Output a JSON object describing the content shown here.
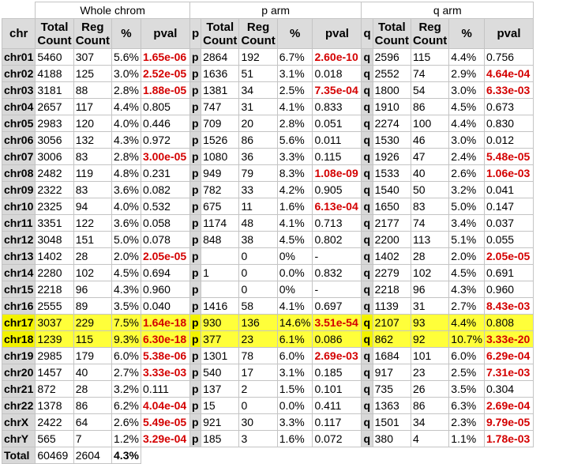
{
  "groups": {
    "whole": "Whole chrom",
    "p": "p arm",
    "q": "q arm"
  },
  "headers": {
    "chr": "chr",
    "total_top": "Total",
    "total_bottom": "Count",
    "reg_top": "Reg",
    "reg_bottom": "Count",
    "pct": "%",
    "pval": "pval",
    "p": "p",
    "q": "q"
  },
  "rows": [
    {
      "chr": "chr01",
      "w": [
        "5460",
        "307",
        "5.6%",
        "1.65e-06"
      ],
      "ws": true,
      "pa": "p",
      "p": [
        "2864",
        "192",
        "6.7%",
        "2.60e-10"
      ],
      "ps": true,
      "qa": "q",
      "q": [
        "2596",
        "115",
        "4.4%",
        "0.756"
      ],
      "qs": false
    },
    {
      "chr": "chr02",
      "w": [
        "4188",
        "125",
        "3.0%",
        "2.52e-05"
      ],
      "ws": true,
      "pa": "p",
      "p": [
        "1636",
        "51",
        "3.1%",
        "0.018"
      ],
      "ps": false,
      "qa": "q",
      "q": [
        "2552",
        "74",
        "2.9%",
        "4.64e-04"
      ],
      "qs": true
    },
    {
      "chr": "chr03",
      "w": [
        "3181",
        "88",
        "2.8%",
        "1.88e-05"
      ],
      "ws": true,
      "pa": "p",
      "p": [
        "1381",
        "34",
        "2.5%",
        "7.35e-04"
      ],
      "ps": true,
      "qa": "q",
      "q": [
        "1800",
        "54",
        "3.0%",
        "6.33e-03"
      ],
      "qs": true
    },
    {
      "chr": "chr04",
      "w": [
        "2657",
        "117",
        "4.4%",
        "0.805"
      ],
      "ws": false,
      "pa": "p",
      "p": [
        "747",
        "31",
        "4.1%",
        "0.833"
      ],
      "ps": false,
      "qa": "q",
      "q": [
        "1910",
        "86",
        "4.5%",
        "0.673"
      ],
      "qs": false
    },
    {
      "chr": "chr05",
      "w": [
        "2983",
        "120",
        "4.0%",
        "0.446"
      ],
      "ws": false,
      "pa": "p",
      "p": [
        "709",
        "20",
        "2.8%",
        "0.051"
      ],
      "ps": false,
      "qa": "q",
      "q": [
        "2274",
        "100",
        "4.4%",
        "0.830"
      ],
      "qs": false
    },
    {
      "chr": "chr06",
      "w": [
        "3056",
        "132",
        "4.3%",
        "0.972"
      ],
      "ws": false,
      "pa": "p",
      "p": [
        "1526",
        "86",
        "5.6%",
        "0.011"
      ],
      "ps": false,
      "qa": "q",
      "q": [
        "1530",
        "46",
        "3.0%",
        "0.012"
      ],
      "qs": false
    },
    {
      "chr": "chr07",
      "w": [
        "3006",
        "83",
        "2.8%",
        "3.00e-05"
      ],
      "ws": true,
      "pa": "p",
      "p": [
        "1080",
        "36",
        "3.3%",
        "0.115"
      ],
      "ps": false,
      "qa": "q",
      "q": [
        "1926",
        "47",
        "2.4%",
        "5.48e-05"
      ],
      "qs": true
    },
    {
      "chr": "chr08",
      "w": [
        "2482",
        "119",
        "4.8%",
        "0.231"
      ],
      "ws": false,
      "pa": "p",
      "p": [
        "949",
        "79",
        "8.3%",
        "1.08e-09"
      ],
      "ps": true,
      "qa": "q",
      "q": [
        "1533",
        "40",
        "2.6%",
        "1.06e-03"
      ],
      "qs": true
    },
    {
      "chr": "chr09",
      "w": [
        "2322",
        "83",
        "3.6%",
        "0.082"
      ],
      "ws": false,
      "pa": "p",
      "p": [
        "782",
        "33",
        "4.2%",
        "0.905"
      ],
      "ps": false,
      "qa": "q",
      "q": [
        "1540",
        "50",
        "3.2%",
        "0.041"
      ],
      "qs": false
    },
    {
      "chr": "chr10",
      "w": [
        "2325",
        "94",
        "4.0%",
        "0.532"
      ],
      "ws": false,
      "pa": "p",
      "p": [
        "675",
        "11",
        "1.6%",
        "6.13e-04"
      ],
      "ps": true,
      "qa": "q",
      "q": [
        "1650",
        "83",
        "5.0%",
        "0.147"
      ],
      "qs": false
    },
    {
      "chr": "chr11",
      "w": [
        "3351",
        "122",
        "3.6%",
        "0.058"
      ],
      "ws": false,
      "pa": "p",
      "p": [
        "1174",
        "48",
        "4.1%",
        "0.713"
      ],
      "ps": false,
      "qa": "q",
      "q": [
        "2177",
        "74",
        "3.4%",
        "0.037"
      ],
      "qs": false
    },
    {
      "chr": "chr12",
      "w": [
        "3048",
        "151",
        "5.0%",
        "0.078"
      ],
      "ws": false,
      "pa": "p",
      "p": [
        "848",
        "38",
        "4.5%",
        "0.802"
      ],
      "ps": false,
      "qa": "q",
      "q": [
        "2200",
        "113",
        "5.1%",
        "0.055"
      ],
      "qs": false
    },
    {
      "chr": "chr13",
      "w": [
        "1402",
        "28",
        "2.0%",
        "2.05e-05"
      ],
      "ws": true,
      "pa": "p",
      "p": [
        "",
        "0",
        "0%",
        "-"
      ],
      "ps": false,
      "qa": "q",
      "q": [
        "1402",
        "28",
        "2.0%",
        "2.05e-05"
      ],
      "qs": true
    },
    {
      "chr": "chr14",
      "w": [
        "2280",
        "102",
        "4.5%",
        "0.694"
      ],
      "ws": false,
      "pa": "p",
      "p": [
        "1",
        "0",
        "0.0%",
        "0.832"
      ],
      "ps": false,
      "qa": "q",
      "q": [
        "2279",
        "102",
        "4.5%",
        "0.691"
      ],
      "qs": false
    },
    {
      "chr": "chr15",
      "w": [
        "2218",
        "96",
        "4.3%",
        "0.960"
      ],
      "ws": false,
      "pa": "p",
      "p": [
        "",
        "0",
        "0%",
        "-"
      ],
      "ps": false,
      "qa": "q",
      "q": [
        "2218",
        "96",
        "4.3%",
        "0.960"
      ],
      "qs": false
    },
    {
      "chr": "chr16",
      "w": [
        "2555",
        "89",
        "3.5%",
        "0.040"
      ],
      "ws": false,
      "pa": "p",
      "p": [
        "1416",
        "58",
        "4.1%",
        "0.697"
      ],
      "ps": false,
      "qa": "q",
      "q": [
        "1139",
        "31",
        "2.7%",
        "8.43e-03"
      ],
      "qs": true
    },
    {
      "chr": "chr17",
      "w": [
        "3037",
        "229",
        "7.5%",
        "1.64e-18"
      ],
      "ws": true,
      "pa": "p",
      "p": [
        "930",
        "136",
        "14.6%",
        "3.51e-54"
      ],
      "ps": true,
      "qa": "q",
      "q": [
        "2107",
        "93",
        "4.4%",
        "0.808"
      ],
      "qs": false,
      "hl": true
    },
    {
      "chr": "chr18",
      "w": [
        "1239",
        "115",
        "9.3%",
        "6.30e-18"
      ],
      "ws": true,
      "pa": "p",
      "p": [
        "377",
        "23",
        "6.1%",
        "0.086"
      ],
      "ps": false,
      "qa": "q",
      "q": [
        "862",
        "92",
        "10.7%",
        "3.33e-20"
      ],
      "qs": true,
      "hl": true
    },
    {
      "chr": "chr19",
      "w": [
        "2985",
        "179",
        "6.0%",
        "5.38e-06"
      ],
      "ws": true,
      "pa": "p",
      "p": [
        "1301",
        "78",
        "6.0%",
        "2.69e-03"
      ],
      "ps": true,
      "qa": "q",
      "q": [
        "1684",
        "101",
        "6.0%",
        "6.29e-04"
      ],
      "qs": true
    },
    {
      "chr": "chr20",
      "w": [
        "1457",
        "40",
        "2.7%",
        "3.33e-03"
      ],
      "ws": true,
      "pa": "p",
      "p": [
        "540",
        "17",
        "3.1%",
        "0.185"
      ],
      "ps": false,
      "qa": "q",
      "q": [
        "917",
        "23",
        "2.5%",
        "7.31e-03"
      ],
      "qs": true
    },
    {
      "chr": "chr21",
      "w": [
        "872",
        "28",
        "3.2%",
        "0.111"
      ],
      "ws": false,
      "pa": "p",
      "p": [
        "137",
        "2",
        "1.5%",
        "0.101"
      ],
      "ps": false,
      "qa": "q",
      "q": [
        "735",
        "26",
        "3.5%",
        "0.304"
      ],
      "qs": false
    },
    {
      "chr": "chr22",
      "w": [
        "1378",
        "86",
        "6.2%",
        "4.04e-04"
      ],
      "ws": true,
      "pa": "p",
      "p": [
        "15",
        "0",
        "0.0%",
        "0.411"
      ],
      "ps": false,
      "qa": "q",
      "q": [
        "1363",
        "86",
        "6.3%",
        "2.69e-04"
      ],
      "qs": true
    },
    {
      "chr": "chrX",
      "w": [
        "2422",
        "64",
        "2.6%",
        "5.49e-05"
      ],
      "ws": true,
      "pa": "p",
      "p": [
        "921",
        "30",
        "3.3%",
        "0.117"
      ],
      "ps": false,
      "qa": "q",
      "q": [
        "1501",
        "34",
        "2.3%",
        "9.79e-05"
      ],
      "qs": true
    },
    {
      "chr": "chrY",
      "w": [
        "565",
        "7",
        "1.2%",
        "3.29e-04"
      ],
      "ws": true,
      "pa": "p",
      "p": [
        "185",
        "3",
        "1.6%",
        "0.072"
      ],
      "ps": false,
      "qa": "q",
      "q": [
        "380",
        "4",
        "1.1%",
        "1.78e-03"
      ],
      "qs": true
    }
  ],
  "total": {
    "label": "Total",
    "count": "60469",
    "reg": "2604",
    "pct": "4.3%"
  },
  "colors": {
    "significant": "#d40000",
    "highlight": "#ffff3a",
    "header_bg": "#dcdcdc"
  }
}
